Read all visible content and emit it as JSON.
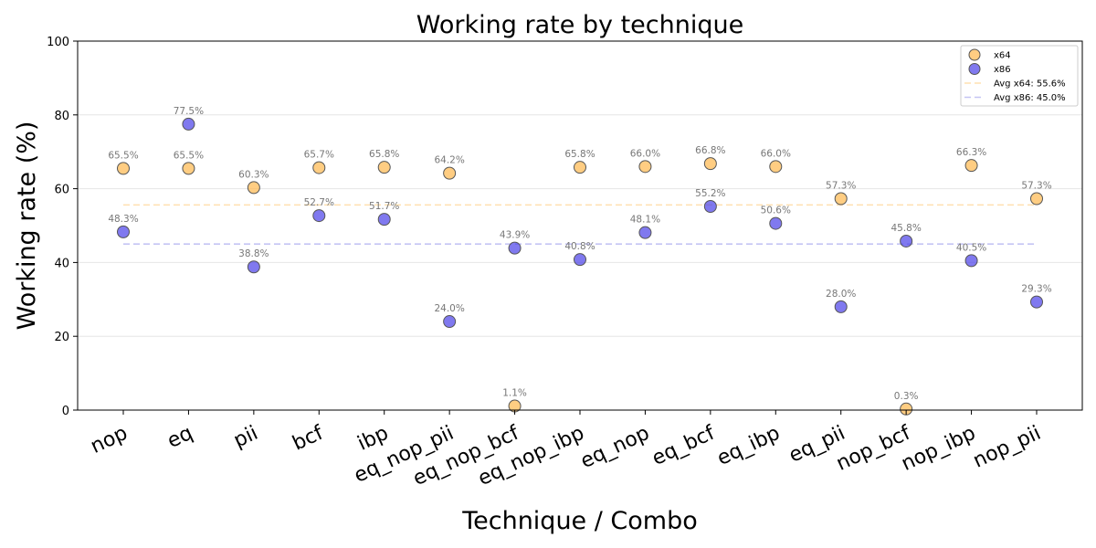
{
  "chart_data": {
    "type": "scatter",
    "title": "Working rate by technique",
    "xlabel": "Technique / Combo",
    "ylabel": "Working rate (%)",
    "ylim": [
      0,
      100
    ],
    "yticks": [
      0,
      20,
      40,
      60,
      80,
      100
    ],
    "grid": "horizontal",
    "legend_position": "top-right",
    "categories": [
      "nop",
      "eq",
      "pii",
      "bcf",
      "ibp",
      "eq_nop_pii",
      "eq_nop_bcf",
      "eq_nop_ibp",
      "eq_nop",
      "eq_bcf",
      "eq_ibp",
      "eq_pii",
      "nop_bcf",
      "nop_ibp",
      "nop_pii"
    ],
    "series": [
      {
        "name": "x64",
        "color": "#ffb84d",
        "values": [
          65.5,
          65.5,
          60.3,
          65.7,
          65.8,
          64.2,
          1.1,
          65.8,
          66.0,
          66.8,
          66.0,
          57.3,
          0.3,
          66.3,
          57.3
        ],
        "labels": [
          "65.5%",
          "65.5%",
          "60.3%",
          "65.7%",
          "65.8%",
          "64.2%",
          "1.1%",
          "65.8%",
          "66.0%",
          "66.8%",
          "66.0%",
          "57.3%",
          "0.3%",
          "66.3%",
          "57.3%"
        ]
      },
      {
        "name": "x86",
        "color": "#4a40e8",
        "values": [
          48.3,
          77.5,
          38.8,
          52.7,
          51.7,
          24.0,
          43.9,
          40.8,
          48.1,
          55.2,
          50.6,
          28.0,
          45.8,
          40.5,
          29.3
        ],
        "labels": [
          "48.3%",
          "77.5%",
          "38.8%",
          "52.7%",
          "51.7%",
          "24.0%",
          "43.9%",
          "40.8%",
          "48.1%",
          "55.2%",
          "50.6%",
          "28.0%",
          "45.8%",
          "40.5%",
          "29.3%"
        ]
      }
    ],
    "averages": [
      {
        "name": "Avg x64: 55.6%",
        "value": 55.6,
        "color": "#ffe0b0"
      },
      {
        "name": "Avg x86: 45.0%",
        "value": 45.0,
        "color": "#c4c4f4"
      }
    ]
  }
}
